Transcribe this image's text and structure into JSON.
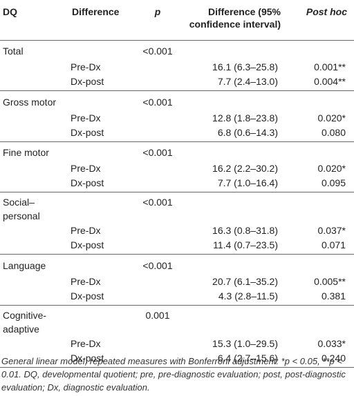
{
  "table": {
    "headers": {
      "dq": "DQ",
      "difference": "Difference",
      "p": "p",
      "ci": "Difference (95% confidence interval)",
      "posthoc": "Post hoc"
    },
    "groups": [
      {
        "label": "Total",
        "p": "<0.001",
        "rows": [
          {
            "comparison": "Pre-Dx",
            "ci": "16.1 (6.3–25.8)",
            "posthoc": "0.001**"
          },
          {
            "comparison": "Dx-post",
            "ci": "7.7 (2.4–13.0)",
            "posthoc": "0.004**"
          }
        ]
      },
      {
        "label": "Gross motor",
        "p": "<0.001",
        "rows": [
          {
            "comparison": "Pre-Dx",
            "ci": "12.8 (1.8–23.8)",
            "posthoc": "0.020*"
          },
          {
            "comparison": "Dx-post",
            "ci": "6.8 (0.6–14.3)",
            "posthoc": "0.080"
          }
        ]
      },
      {
        "label": "Fine motor",
        "p": "<0.001",
        "rows": [
          {
            "comparison": "Pre-Dx",
            "ci": "16.2 (2.2–30.2)",
            "posthoc": "0.020*"
          },
          {
            "comparison": "Dx-post",
            "ci": "7.7 (1.0–16.4)",
            "posthoc": "0.095"
          }
        ]
      },
      {
        "label_line1": "Social–",
        "label_line2": "personal",
        "p": "<0.001",
        "rows": [
          {
            "comparison": "Pre-Dx",
            "ci": "16.3 (0.8–31.8)",
            "posthoc": "0.037*"
          },
          {
            "comparison": "Dx-post",
            "ci": "11.4 (0.7–23.5)",
            "posthoc": "0.071"
          }
        ]
      },
      {
        "label": "Language",
        "p": "<0.001",
        "rows": [
          {
            "comparison": "Pre-Dx",
            "ci": "20.7 (6.1–35.2)",
            "posthoc": "0.005**"
          },
          {
            "comparison": "Dx-post",
            "ci": "4.3 (2.8–11.5)",
            "posthoc": "0.381"
          }
        ]
      },
      {
        "label_line1": "Cognitive-",
        "label_line2": "adaptive",
        "p": "0.001",
        "rows": [
          {
            "comparison": "Pre-Dx",
            "ci": "15.3 (1.0–29.5)",
            "posthoc": "0.033*"
          },
          {
            "comparison": "Dx-post",
            "ci": "6.4 (2.7–15.6)",
            "posthoc": "0.240"
          }
        ]
      }
    ]
  },
  "footnote": "General linear model, repeated measures with Bonferroni adjustment: *p < 0.05, **p < 0.01. DQ, developmental quotient; pre, pre-diagnostic evaluation; post, post-diagnostic evaluation; Dx, diagnostic evaluation."
}
